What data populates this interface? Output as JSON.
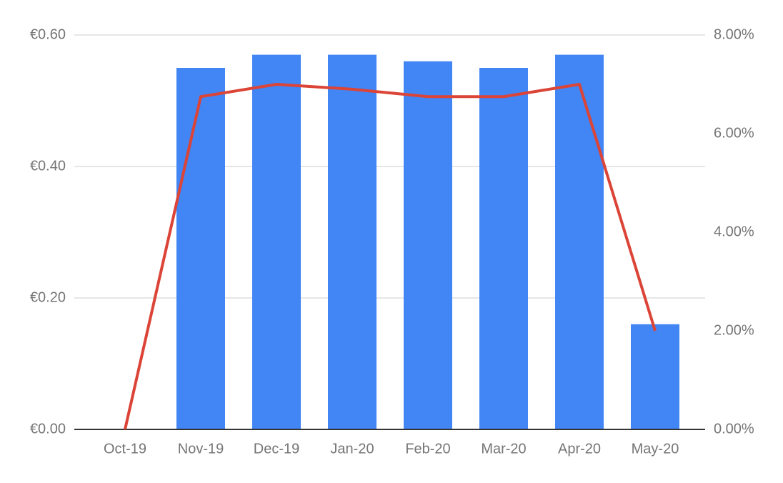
{
  "chart_data": {
    "type": "combo",
    "categories": [
      "Oct-19",
      "Nov-19",
      "Dec-19",
      "Jan-20",
      "Feb-20",
      "Mar-20",
      "Apr-20",
      "May-20"
    ],
    "series": [
      {
        "type": "bar",
        "color": "#4285f4",
        "values": [
          0,
          0.55,
          0.57,
          0.57,
          0.56,
          0.55,
          0.57,
          0.16
        ]
      },
      {
        "type": "line",
        "axis": "y2",
        "color": "#db4437",
        "values": [
          0,
          6.75,
          7.0,
          6.9,
          6.75,
          6.75,
          7.0,
          2.0
        ]
      }
    ],
    "ylim": [
      0,
      0.6
    ],
    "yticks": [
      {
        "value": 0,
        "label": "€0.00"
      },
      {
        "value": 0.2,
        "label": "€0.20"
      },
      {
        "value": 0.4,
        "label": "€0.40"
      },
      {
        "value": 0.6,
        "label": "€0.60"
      }
    ],
    "y2lim": [
      0,
      8
    ],
    "y2ticks": [
      {
        "value": 0,
        "label": "0.00%"
      },
      {
        "value": 2,
        "label": "2.00%"
      },
      {
        "value": 4,
        "label": "4.00%"
      },
      {
        "value": 6,
        "label": "6.00%"
      },
      {
        "value": 8,
        "label": "8.00%"
      }
    ],
    "grid": true
  }
}
